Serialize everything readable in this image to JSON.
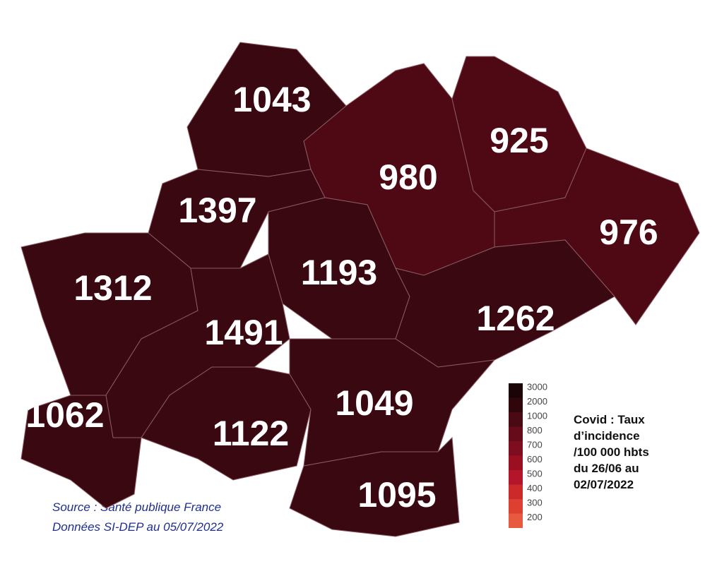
{
  "regions": [
    {
      "value": 1043,
      "color": "#3a0810"
    },
    {
      "value": 980,
      "color": "#4f0914"
    },
    {
      "value": 925,
      "color": "#4f0914"
    },
    {
      "value": 976,
      "color": "#4f0914"
    },
    {
      "value": 1397,
      "color": "#3a0810"
    },
    {
      "value": 1193,
      "color": "#3a0810"
    },
    {
      "value": 1312,
      "color": "#3a0810"
    },
    {
      "value": 1491,
      "color": "#3a0810"
    },
    {
      "value": 1262,
      "color": "#3a0810"
    },
    {
      "value": 1062,
      "color": "#3a0810"
    },
    {
      "value": 1122,
      "color": "#3a0810"
    },
    {
      "value": 1049,
      "color": "#3a0810"
    },
    {
      "value": 1095,
      "color": "#3a0810"
    }
  ],
  "legend": {
    "scale": [
      {
        "value": 3000,
        "color": "#1a0407"
      },
      {
        "value": 2000,
        "color": "#2e060c"
      },
      {
        "value": 1000,
        "color": "#4a0a14"
      },
      {
        "value": 800,
        "color": "#650b1a"
      },
      {
        "value": 700,
        "color": "#7f0d20"
      },
      {
        "value": 600,
        "color": "#9a0f22"
      },
      {
        "value": 500,
        "color": "#b5152a"
      },
      {
        "value": 400,
        "color": "#cc2a2a"
      },
      {
        "value": 300,
        "color": "#dd4030"
      },
      {
        "value": 200,
        "color": "#e85a40"
      }
    ],
    "caption": [
      "Covid : Taux",
      "d’incidence",
      "/100 000 hbts",
      "du 26/06 au",
      "02/07/2022"
    ]
  },
  "source": [
    "Source : Santé publique France",
    "Données SI-DEP au 05/07/2022"
  ]
}
